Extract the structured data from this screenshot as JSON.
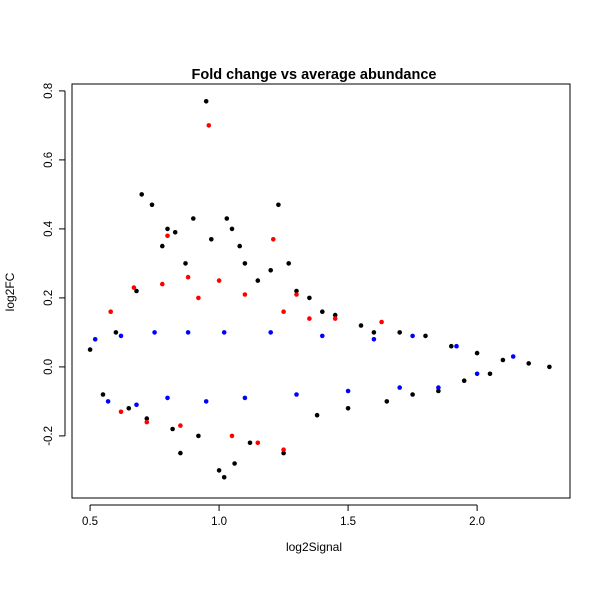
{
  "chart_data": {
    "type": "scatter",
    "title": "Fold change vs average abundance",
    "xlabel": "log2Signal",
    "ylabel": "log2FC",
    "xlim": [
      0.43,
      2.36
    ],
    "ylim": [
      -0.38,
      0.82
    ],
    "x_ticks": [
      0.5,
      1.0,
      1.5,
      2.0
    ],
    "x_tick_labels": [
      "0.5",
      "1.0",
      "1.5",
      "2.0"
    ],
    "y_ticks": [
      -0.2,
      0.0,
      0.2,
      0.4,
      0.6,
      0.8
    ],
    "y_tick_labels": [
      "-0.2",
      "0.0",
      "0.2",
      "0.4",
      "0.6",
      "0.8"
    ],
    "grid": false,
    "legend": "none",
    "colors": {
      "black": "#000000",
      "blue": "#0000ff",
      "red": "#ff0000"
    },
    "series": [
      {
        "color": "#000000",
        "points": [
          [
            0.5,
            0.05
          ],
          [
            0.55,
            -0.08
          ],
          [
            0.6,
            0.1
          ],
          [
            0.65,
            -0.12
          ],
          [
            0.68,
            0.22
          ],
          [
            0.7,
            0.5
          ],
          [
            0.72,
            -0.15
          ],
          [
            0.74,
            0.47
          ],
          [
            0.78,
            0.35
          ],
          [
            0.8,
            0.4
          ],
          [
            0.82,
            -0.18
          ],
          [
            0.83,
            0.39
          ],
          [
            0.85,
            -0.25
          ],
          [
            0.87,
            0.3
          ],
          [
            0.9,
            0.43
          ],
          [
            0.92,
            -0.2
          ],
          [
            0.95,
            0.77
          ],
          [
            0.97,
            0.37
          ],
          [
            1.0,
            -0.3
          ],
          [
            1.02,
            -0.32
          ],
          [
            1.03,
            0.43
          ],
          [
            1.05,
            0.4
          ],
          [
            1.06,
            -0.28
          ],
          [
            1.08,
            0.35
          ],
          [
            1.1,
            0.3
          ],
          [
            1.12,
            -0.22
          ],
          [
            1.15,
            0.25
          ],
          [
            1.2,
            0.28
          ],
          [
            1.23,
            0.47
          ],
          [
            1.25,
            -0.25
          ],
          [
            1.27,
            0.3
          ],
          [
            1.3,
            0.22
          ],
          [
            1.35,
            0.2
          ],
          [
            1.38,
            -0.14
          ],
          [
            1.4,
            0.16
          ],
          [
            1.45,
            0.15
          ],
          [
            1.5,
            -0.12
          ],
          [
            1.55,
            0.12
          ],
          [
            1.6,
            0.1
          ],
          [
            1.65,
            -0.1
          ],
          [
            1.7,
            0.1
          ],
          [
            1.75,
            -0.08
          ],
          [
            1.8,
            0.09
          ],
          [
            1.85,
            -0.07
          ],
          [
            1.9,
            0.06
          ],
          [
            1.95,
            -0.04
          ],
          [
            2.0,
            0.04
          ],
          [
            2.05,
            -0.02
          ],
          [
            2.1,
            0.02
          ],
          [
            2.2,
            0.01
          ],
          [
            2.28,
            0.0
          ]
        ]
      },
      {
        "color": "#0000ff",
        "points": [
          [
            0.52,
            0.08
          ],
          [
            0.57,
            -0.1
          ],
          [
            0.62,
            0.09
          ],
          [
            0.68,
            -0.11
          ],
          [
            0.75,
            0.1
          ],
          [
            0.8,
            -0.09
          ],
          [
            0.88,
            0.1
          ],
          [
            0.95,
            -0.1
          ],
          [
            1.02,
            0.1
          ],
          [
            1.1,
            -0.09
          ],
          [
            1.2,
            0.1
          ],
          [
            1.3,
            -0.08
          ],
          [
            1.4,
            0.09
          ],
          [
            1.5,
            -0.07
          ],
          [
            1.6,
            0.08
          ],
          [
            1.7,
            -0.06
          ],
          [
            1.75,
            0.09
          ],
          [
            1.85,
            -0.06
          ],
          [
            1.92,
            0.06
          ],
          [
            2.0,
            -0.02
          ],
          [
            2.14,
            0.03
          ]
        ]
      },
      {
        "color": "#ff0000",
        "points": [
          [
            0.58,
            0.16
          ],
          [
            0.62,
            -0.13
          ],
          [
            0.67,
            0.23
          ],
          [
            0.72,
            -0.16
          ],
          [
            0.78,
            0.24
          ],
          [
            0.8,
            0.38
          ],
          [
            0.85,
            -0.17
          ],
          [
            0.88,
            0.26
          ],
          [
            0.92,
            0.2
          ],
          [
            0.96,
            0.7
          ],
          [
            1.0,
            0.25
          ],
          [
            1.05,
            -0.2
          ],
          [
            1.1,
            0.21
          ],
          [
            1.15,
            -0.22
          ],
          [
            1.21,
            0.37
          ],
          [
            1.25,
            0.16
          ],
          [
            1.25,
            -0.24
          ],
          [
            1.3,
            0.21
          ],
          [
            1.35,
            0.14
          ],
          [
            1.45,
            0.14
          ],
          [
            1.63,
            0.13
          ]
        ]
      }
    ]
  }
}
